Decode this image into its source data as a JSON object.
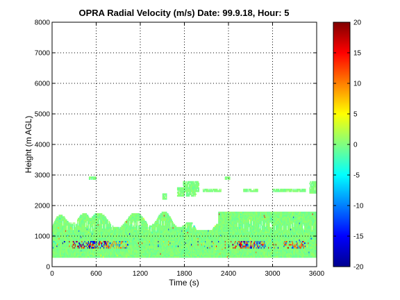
{
  "chart_data": {
    "type": "heatmap",
    "title": "OPRA Radial Velocity (m/s)  Date: 99.9.18, Hour: 5",
    "xlabel": "Time (s)",
    "ylabel": "Height (m AGL)",
    "xlim": [
      0,
      3600
    ],
    "ylim": [
      0,
      8000
    ],
    "xticks": [
      "0",
      "600",
      "1200",
      "1800",
      "2400",
      "3000",
      "3600"
    ],
    "yticks": [
      "0",
      "1000",
      "2000",
      "3000",
      "4000",
      "5000",
      "6000",
      "7000",
      "8000"
    ],
    "grid": true,
    "colorbar": {
      "range": [
        -20,
        20
      ],
      "ticks": [
        "20",
        "15",
        "10",
        "5",
        "0",
        "-5",
        "-10",
        "-15",
        "-20"
      ],
      "colormap": "jet"
    },
    "regions": [
      {
        "name": "main-echo-layer",
        "t": [
          0,
          3600
        ],
        "z": [
          300,
          1800
        ],
        "velocity": 0
      },
      {
        "name": "upper-patches",
        "t": [
          1500,
          3600
        ],
        "z": [
          2200,
          2700
        ],
        "velocity": 0
      }
    ],
    "strong_returns": [
      {
        "t": 420,
        "z": 700,
        "velocity": 18
      },
      {
        "t": 640,
        "z": 700,
        "velocity": -18
      },
      {
        "t": 880,
        "z": 700,
        "velocity": 12
      },
      {
        "t": 2600,
        "z": 700,
        "velocity": 18
      },
      {
        "t": 2750,
        "z": 700,
        "velocity": -16
      },
      {
        "t": 3300,
        "z": 700,
        "velocity": 14
      }
    ]
  }
}
